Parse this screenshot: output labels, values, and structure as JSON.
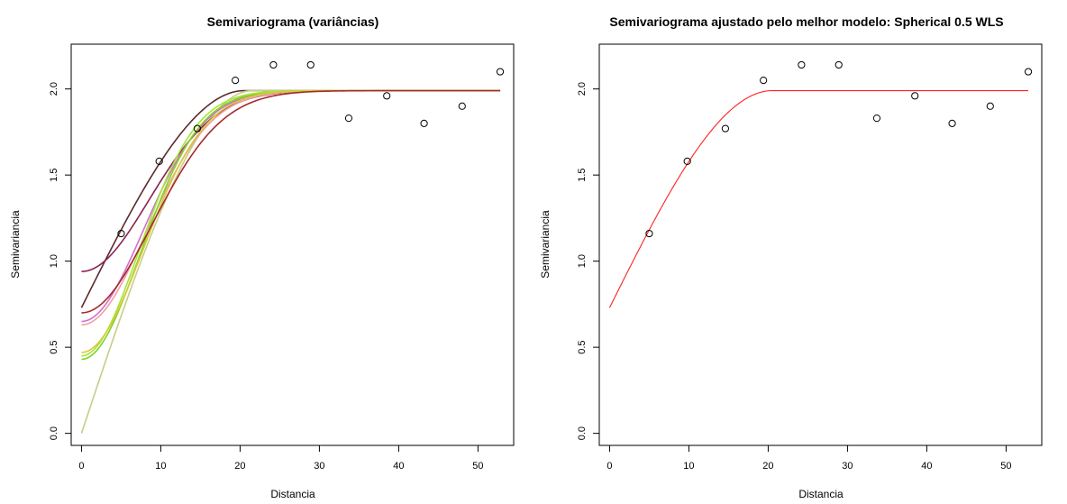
{
  "chart_data": [
    {
      "type": "scatter",
      "title": "Semivariograma (variâncias)",
      "xlabel": "Distancia",
      "ylabel": "Semivariancia",
      "xlim": [
        -1.3,
        54.5
      ],
      "ylim": [
        -0.07,
        2.26
      ],
      "x_ticks": [
        0,
        10,
        20,
        30,
        40,
        50
      ],
      "y_ticks": [
        0.0,
        0.5,
        1.0,
        1.5,
        2.0
      ],
      "x_tick_labels": [
        "0",
        "10",
        "20",
        "30",
        "40",
        "50"
      ],
      "y_tick_labels": [
        "0.0",
        "0.5",
        "1.0",
        "1.5",
        "2.0"
      ],
      "grid": false,
      "points": {
        "x": [
          5.0,
          9.8,
          14.6,
          19.4,
          24.2,
          28.9,
          33.7,
          38.5,
          43.2,
          48.0,
          52.8
        ],
        "y": [
          1.16,
          1.58,
          1.77,
          2.05,
          2.14,
          2.14,
          1.83,
          1.96,
          1.8,
          1.9,
          2.1
        ]
      },
      "fitted_models": [
        {
          "model": "spherical",
          "nugget": 0.73,
          "sill": 1.99,
          "range": 20.5,
          "color": "#5c2a2a"
        },
        {
          "model": "spherical",
          "nugget": 0.0,
          "sill": 1.99,
          "range": 21.5,
          "color": "#c8cc88"
        },
        {
          "model": "gaussian",
          "nugget": 0.94,
          "sill": 1.99,
          "range": 12.0,
          "color": "#8b2252"
        },
        {
          "model": "gaussian",
          "nugget": 0.65,
          "sill": 1.99,
          "range": 11.0,
          "color": "#d16fd1"
        },
        {
          "model": "gaussian",
          "nugget": 0.63,
          "sill": 1.99,
          "range": 11.5,
          "color": "#f0a0a0"
        },
        {
          "model": "gaussian",
          "nugget": 0.43,
          "sill": 1.99,
          "range": 10.5,
          "color": "#7ed321"
        },
        {
          "model": "gaussian",
          "nugget": 0.45,
          "sill": 1.99,
          "range": 10.2,
          "color": "#a3e635"
        },
        {
          "model": "gaussian",
          "nugget": 0.47,
          "sill": 1.99,
          "range": 11.0,
          "color": "#d8c838"
        },
        {
          "model": "gaussian",
          "nugget": 0.7,
          "sill": 1.99,
          "range": 12.5,
          "color": "#a52a2a"
        }
      ]
    },
    {
      "type": "scatter",
      "title": "Semivariograma ajustado pelo melhor modelo: Spherical 0.5 WLS",
      "xlabel": "Distancia",
      "ylabel": "Semivariancia",
      "xlim": [
        -1.3,
        54.5
      ],
      "ylim": [
        -0.07,
        2.26
      ],
      "x_ticks": [
        0,
        10,
        20,
        30,
        40,
        50
      ],
      "y_ticks": [
        0.0,
        0.5,
        1.0,
        1.5,
        2.0
      ],
      "x_tick_labels": [
        "0",
        "10",
        "20",
        "30",
        "40",
        "50"
      ],
      "y_tick_labels": [
        "0.0",
        "0.5",
        "1.0",
        "1.5",
        "2.0"
      ],
      "grid": false,
      "points": {
        "x": [
          5.0,
          9.8,
          14.6,
          19.4,
          24.2,
          28.9,
          33.7,
          38.5,
          43.2,
          48.0,
          52.8
        ],
        "y": [
          1.16,
          1.58,
          1.77,
          2.05,
          2.14,
          2.14,
          1.83,
          1.96,
          1.8,
          1.9,
          2.1
        ]
      },
      "fitted_models": [
        {
          "model": "spherical",
          "nugget": 0.73,
          "sill": 1.99,
          "range": 20.5,
          "color": "#ff2020"
        }
      ]
    }
  ]
}
